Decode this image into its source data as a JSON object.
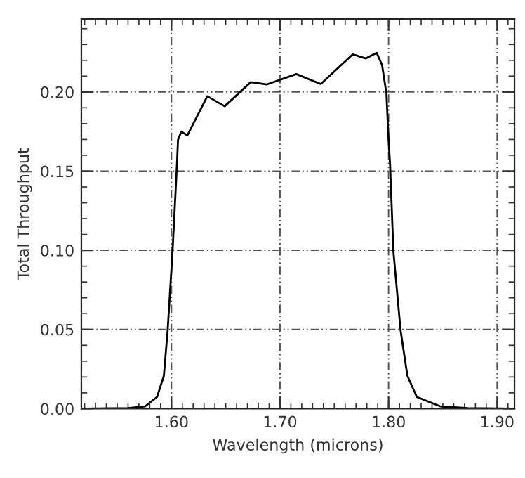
{
  "chart_data": {
    "type": "line",
    "xlabel": "Wavelength (microns)",
    "ylabel": "Total Throughput",
    "series": [
      {
        "color": "#000000",
        "x": [
          1.517,
          1.56,
          1.5758,
          1.5867,
          1.593,
          1.5965,
          1.601,
          1.605,
          1.606,
          1.609,
          1.6146,
          1.633,
          1.649,
          1.673,
          1.688,
          1.715,
          1.7375,
          1.767,
          1.779,
          1.789,
          1.794,
          1.798,
          1.8,
          1.8014,
          1.8044,
          1.811,
          1.8173,
          1.826,
          1.8475,
          1.873,
          1.916
        ],
        "values": [
          0.0,
          0.0003,
          0.0015,
          0.0074,
          0.0208,
          0.0497,
          0.0997,
          0.1536,
          0.1696,
          0.175,
          0.1726,
          0.1973,
          0.191,
          0.2062,
          0.2048,
          0.2113,
          0.205,
          0.2238,
          0.2212,
          0.2247,
          0.217,
          0.199,
          0.1696,
          0.1536,
          0.0997,
          0.0497,
          0.0208,
          0.0074,
          0.0015,
          0.0003,
          0.0
        ]
      }
    ],
    "xlim": [
      1.517,
      1.916
    ],
    "xticks": [
      {
        "value": 1.6,
        "label": "1.60"
      },
      {
        "value": 1.7,
        "label": "1.70"
      },
      {
        "value": 1.8,
        "label": "1.80"
      },
      {
        "value": 1.9,
        "label": "1.90"
      }
    ],
    "ylim": [
      0.0,
      0.246
    ],
    "yticks": [
      {
        "value": 0.0,
        "label": "0.00"
      },
      {
        "value": 0.05,
        "label": "0.05"
      },
      {
        "value": 0.1,
        "label": "0.10"
      },
      {
        "value": 0.15,
        "label": "0.15"
      },
      {
        "value": 0.2,
        "label": "0.20"
      }
    ],
    "grid": true,
    "line_style": "solid",
    "marker": "none",
    "legend": false
  }
}
